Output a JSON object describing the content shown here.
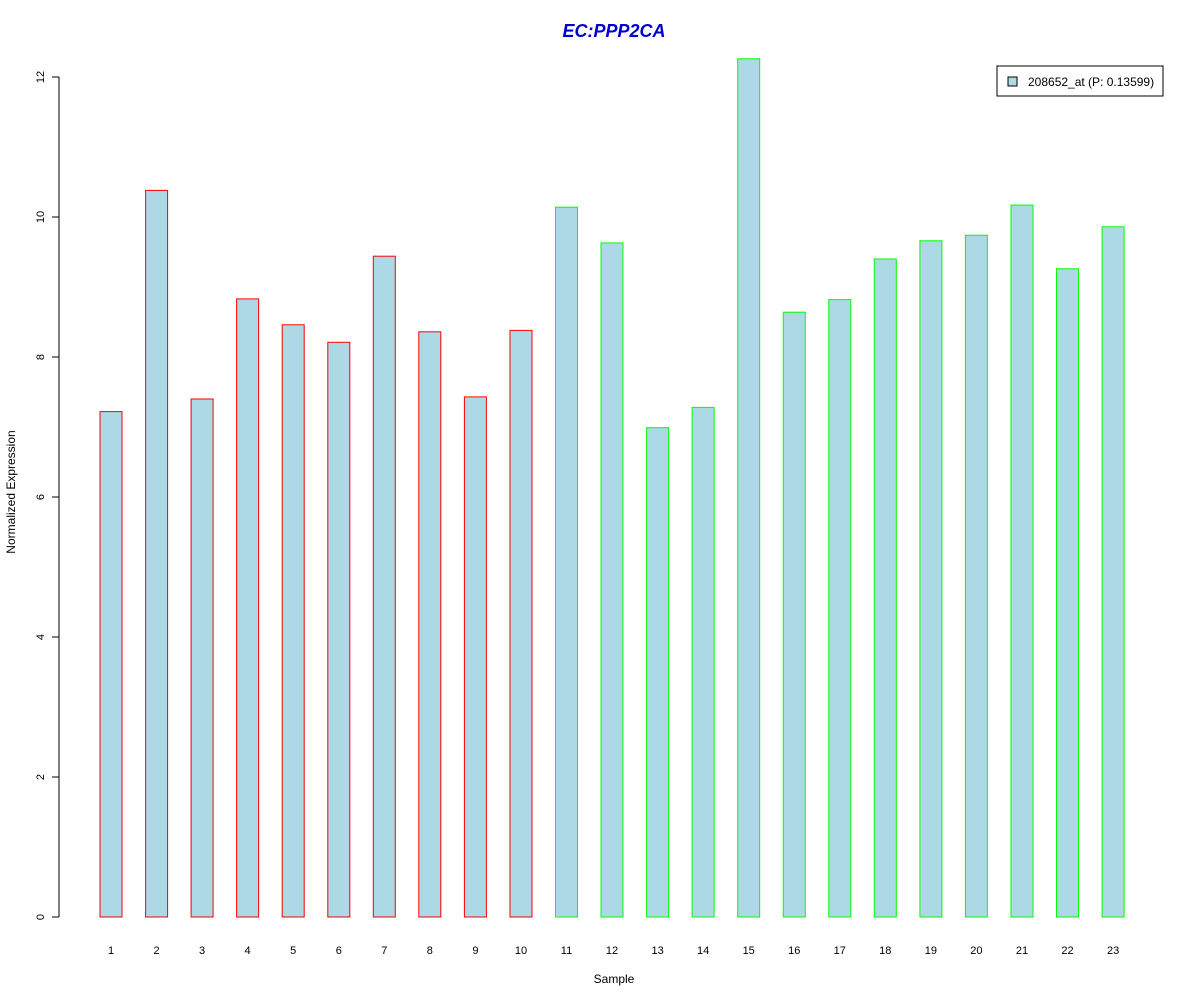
{
  "chart_data": {
    "type": "bar",
    "title": "EC:PPP2CA",
    "xlabel": "Sample",
    "ylabel": "Normalized Expression",
    "ylim": [
      0,
      12
    ],
    "yticks": [
      "0",
      "2",
      "4",
      "6",
      "8",
      "10",
      "12"
    ],
    "grid": false,
    "legend_position": "top-right",
    "categories": [
      "1",
      "2",
      "3",
      "4",
      "5",
      "6",
      "7",
      "8",
      "9",
      "10",
      "11",
      "12",
      "13",
      "14",
      "15",
      "16",
      "17",
      "18",
      "19",
      "20",
      "21",
      "22",
      "23"
    ],
    "series": [
      {
        "name": "208652_at (P: 0.13599)",
        "values": [
          7.22,
          10.38,
          7.4,
          8.83,
          8.46,
          8.21,
          9.44,
          8.36,
          7.43,
          8.38,
          10.14,
          9.63,
          6.99,
          7.28,
          12.26,
          8.64,
          8.82,
          9.4,
          9.66,
          9.74,
          10.17,
          9.26,
          9.86
        ]
      }
    ],
    "groups": [
      "red",
      "red",
      "red",
      "red",
      "red",
      "red",
      "red",
      "red",
      "red",
      "red",
      "green",
      "green",
      "green",
      "green",
      "green",
      "green",
      "green",
      "green",
      "green",
      "green",
      "green",
      "green",
      "green"
    ],
    "colors": {
      "fill": "#add8e6",
      "red_border": "#ff0000",
      "green_border": "#00ff00",
      "title": "#0000cc",
      "axis": "#000000"
    }
  }
}
